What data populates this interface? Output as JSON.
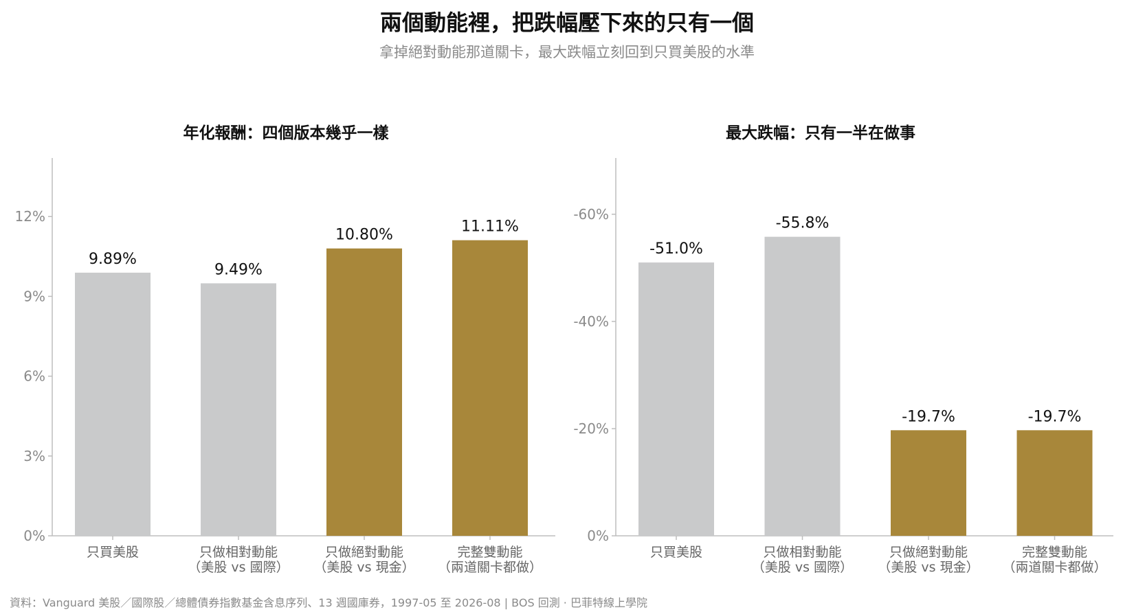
{
  "title": "兩個動能裡，把跌幅壓下來的只有一個",
  "subtitle": "拿掉絕對動能那道關卡，最大跌幅立刻回到只買美股的水準",
  "footer": "資料：Vanguard 美股／國際股／總體債券指數基金含息序列、13 週國庫券，1997-05 至 2026-08 | BOS 回測 ·  巴菲特線上學院",
  "colors": {
    "gray": "#c9cacb",
    "gold": "#a8873a",
    "axis": "#bdbdbd"
  },
  "chart_data": [
    {
      "type": "bar",
      "title": "年化報酬：四個版本幾乎一樣",
      "categories": [
        [
          "只買美股"
        ],
        [
          "只做相對動能",
          "（美股 vs 國際）"
        ],
        [
          "只做絕對動能",
          "（美股 vs 現金）"
        ],
        [
          "完整雙動能",
          "（兩道關卡都做）"
        ]
      ],
      "values": [
        9.89,
        9.49,
        10.8,
        11.11
      ],
      "value_labels": [
        "9.89%",
        "9.49%",
        "10.80%",
        "11.11%"
      ],
      "bar_colors": [
        "gray",
        "gray",
        "gold",
        "gold"
      ],
      "yticks": [
        0,
        3,
        6,
        9,
        12
      ],
      "ytick_labels": [
        "0%",
        "3%",
        "6%",
        "9%",
        "12%"
      ],
      "ylim": [
        0,
        14.2
      ],
      "grid": false
    },
    {
      "type": "bar",
      "title": "最大跌幅：只有一半在做事",
      "categories": [
        [
          "只買美股"
        ],
        [
          "只做相對動能",
          "（美股 vs 國際）"
        ],
        [
          "只做絕對動能",
          "（美股 vs 現金）"
        ],
        [
          "完整雙動能",
          "（兩道關卡都做）"
        ]
      ],
      "values": [
        -51.0,
        -55.8,
        -19.7,
        -19.7
      ],
      "value_labels": [
        "-51.0%",
        "-55.8%",
        "-19.7%",
        "-19.7%"
      ],
      "bar_colors": [
        "gray",
        "gray",
        "gold",
        "gold"
      ],
      "yticks": [
        0,
        -20,
        -40,
        -60
      ],
      "ytick_labels": [
        "0%",
        "-20%",
        "-40%",
        "-60%"
      ],
      "ylim": [
        0,
        -70.5
      ],
      "inverted": true,
      "grid": false
    }
  ]
}
